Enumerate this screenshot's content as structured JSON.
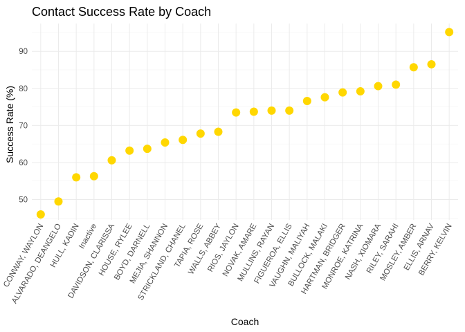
{
  "chart_data": {
    "type": "scatter",
    "title": "Contact Success Rate by Coach",
    "xlabel": "Coach",
    "ylabel": "Success Rate (%)",
    "categories": [
      "CONWAY, WAYLON",
      "ALVARADO, DEANGELO",
      "HULL, KADIN",
      "Inactive",
      "DAVIDSON, CLARISSA",
      "HOUSE, RYLEE",
      "BOYD, DARNELL",
      "MEJIA, SHANNON",
      "STRICKLAND, CHANEL",
      "TAPIA, ROSE",
      "WALLS, ABBEY",
      "RIOS, JAYLON",
      "NOVAK, AMARE",
      "MULLINS, RAYAN",
      "FIGUEROA, ELLIS",
      "VAUGHN, MALIYAH",
      "BULLOCK, MALAKI",
      "HARTMAN, BRIDGER",
      "MONROE, KATRINA",
      "NASH, XIOMARA",
      "RILEY, SARAHI",
      "MOSLEY, AMBER",
      "ELLIS, ARNAV",
      "BERRY, KELVIN"
    ],
    "values": [
      46.0,
      49.5,
      56.0,
      56.3,
      60.6,
      63.2,
      63.7,
      65.4,
      66.1,
      67.8,
      68.3,
      73.5,
      73.7,
      74.0,
      74.0,
      76.6,
      77.6,
      78.9,
      79.2,
      80.6,
      81.0,
      85.7,
      86.5,
      95.2
    ],
    "y_ticks": [
      50,
      60,
      70,
      80,
      90
    ],
    "ylim": [
      44.5,
      97.5
    ],
    "grid": true,
    "point_color": "#FFD700",
    "legend": "none"
  }
}
